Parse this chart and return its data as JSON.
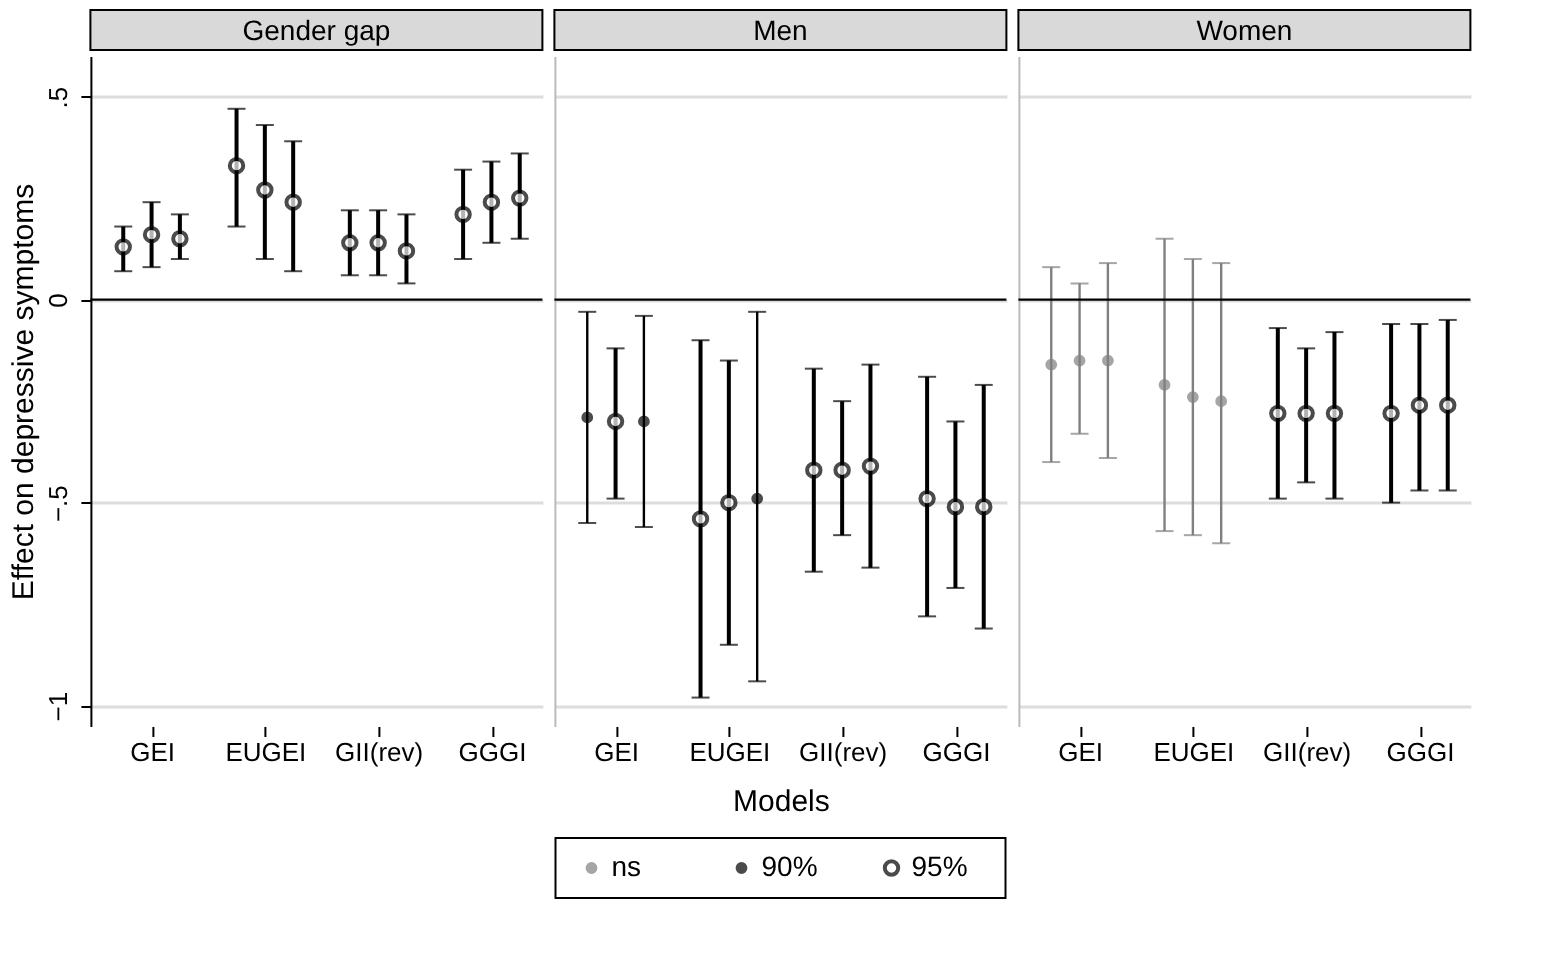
{
  "chart_data": [
    {
      "type": "scatter",
      "title": "Gender gap",
      "ylabel": "Effect on depressive symptoms",
      "ylim": [
        -1.05,
        0.6
      ],
      "categories": [
        null,
        "GEI",
        null,
        null,
        null,
        "EUGEI",
        null,
        null,
        null,
        "GII(rev)",
        null,
        null,
        null,
        "GGGI",
        null
      ],
      "yticks": [
        {
          "value": -1,
          "label": "−1"
        },
        {
          "value": -0.5,
          "label": "−.5"
        },
        0,
        {
          "value": 0.5,
          "label": ".5"
        }
      ],
      "grid": "y",
      "ref_lines": [
        {
          "axis": "y",
          "value": 0,
          "color": "#000000"
        }
      ],
      "series": [
        {
          "color": "#000000",
          "marker": "circle",
          "values": [
            0.13,
            0.16,
            0.15,
            null,
            0.33,
            0.27,
            0.24,
            null,
            0.14,
            0.14,
            0.12,
            null,
            0.21,
            0.24,
            0.25
          ],
          "errors": [
            [
              0.07,
              0.18
            ],
            [
              0.08,
              0.24
            ],
            [
              0.1,
              0.21
            ],
            null,
            [
              0.18,
              0.47
            ],
            [
              0.1,
              0.43
            ],
            [
              0.07,
              0.39
            ],
            null,
            [
              0.06,
              0.22
            ],
            [
              0.06,
              0.22
            ],
            [
              0.04,
              0.21
            ],
            null,
            [
              0.1,
              0.32
            ],
            [
              0.14,
              0.34
            ],
            [
              0.15,
              0.36
            ]
          ]
        }
      ]
    },
    {
      "type": "scatter",
      "title": "Men",
      "xlabel": "Models",
      "ylim": [
        -1.05,
        0.6
      ],
      "categories": [
        null,
        "GEI",
        null,
        null,
        null,
        "EUGEI",
        null,
        null,
        null,
        "GII(rev)",
        null,
        null,
        null,
        "GGGI",
        null
      ],
      "yticks": [
        -1,
        -0.5,
        0,
        0.5
      ],
      "tick_labels": "x",
      "grid": "y",
      "legend": "bottom",
      "ref_lines": [
        {
          "axis": "y",
          "value": 0,
          "color": "#000000"
        }
      ],
      "series": [
        {
          "name": "90%",
          "color": "#000000",
          "values": [
            -0.29,
            null,
            -0.3,
            null,
            null,
            null,
            -0.49,
            null,
            null,
            null,
            null,
            null,
            null,
            null,
            null
          ],
          "errors": [
            [
              -0.55,
              -0.03
            ],
            null,
            [
              -0.56,
              -0.04
            ],
            null,
            null,
            null,
            [
              -0.94,
              -0.03
            ],
            null,
            null,
            null,
            null,
            null,
            null,
            null,
            null
          ]
        },
        {
          "name": "95%",
          "color": "#000000",
          "marker": "circle",
          "values": [
            null,
            -0.3,
            null,
            null,
            -0.54,
            -0.5,
            null,
            null,
            -0.42,
            -0.42,
            -0.41,
            null,
            -0.49,
            -0.51,
            -0.51
          ],
          "errors": [
            null,
            [
              -0.49,
              -0.12
            ],
            null,
            null,
            [
              -0.98,
              -0.1
            ],
            [
              -0.85,
              -0.15
            ],
            null,
            null,
            [
              -0.67,
              -0.17
            ],
            [
              -0.58,
              -0.25
            ],
            [
              -0.66,
              -0.16
            ],
            null,
            [
              -0.78,
              -0.19
            ],
            [
              -0.71,
              -0.3
            ],
            [
              -0.81,
              -0.21
            ]
          ]
        }
      ]
    },
    {
      "type": "scatter",
      "title": "Women",
      "ylim": [
        -1.05,
        0.6
      ],
      "categories": [
        null,
        "GEI",
        null,
        null,
        null,
        "EUGEI",
        null,
        null,
        null,
        "GII(rev)",
        null,
        null,
        null,
        "GGGI",
        null
      ],
      "yticks": [
        -1,
        -0.5,
        0,
        0.5
      ],
      "tick_labels": "x",
      "grid": "y",
      "ref_lines": [
        {
          "axis": "y",
          "value": 0,
          "color": "#000000"
        }
      ],
      "series": [
        {
          "name": "ns",
          "color": "#808080",
          "values": [
            -0.16,
            -0.15,
            -0.15,
            null,
            -0.21,
            -0.24,
            -0.25,
            null,
            null,
            null,
            null,
            null,
            null,
            null,
            null
          ],
          "errors": [
            [
              -0.4,
              0.08
            ],
            [
              -0.33,
              0.04
            ],
            [
              -0.39,
              0.09
            ],
            null,
            [
              -0.57,
              0.15
            ],
            [
              -0.58,
              0.1
            ],
            [
              -0.6,
              0.09
            ],
            null,
            null,
            null,
            null,
            null,
            null,
            null,
            null
          ]
        },
        {
          "color": "#000000",
          "marker": "circle",
          "values": [
            null,
            null,
            null,
            null,
            null,
            null,
            null,
            null,
            -0.28,
            -0.28,
            -0.28,
            null,
            -0.28,
            -0.26,
            -0.26
          ],
          "errors": [
            null,
            null,
            null,
            null,
            null,
            null,
            null,
            null,
            [
              -0.49,
              -0.07
            ],
            [
              -0.45,
              -0.12
            ],
            [
              -0.49,
              -0.08
            ],
            null,
            [
              -0.5,
              -0.06
            ],
            [
              -0.47,
              -0.06
            ],
            [
              -0.47,
              -0.05
            ]
          ]
        }
      ]
    }
  ]
}
